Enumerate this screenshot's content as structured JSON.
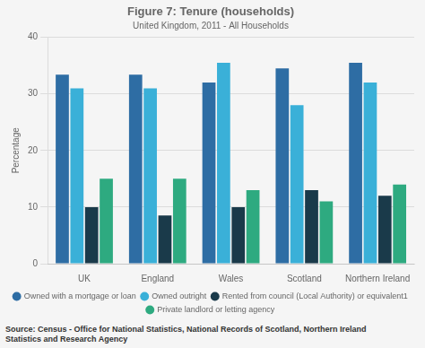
{
  "chart_data": {
    "type": "bar",
    "title": "Figure 7: Tenure (households)",
    "subtitle": "United Kingdom, 2011 - All Households",
    "ylabel": "Percentage",
    "source_text": "Source: Census - Office for National Statistics, National Records of Scotland, Northern Ireland\nStatistics and Research Agency",
    "categories": [
      "UK",
      "England",
      "Wales",
      "Scotland",
      "Northern Ireland"
    ],
    "series": [
      {
        "name": "Owned with a mortgage or loan",
        "color": "#2e6da4",
        "values": [
          33.4,
          33.4,
          32.0,
          34.5,
          35.5
        ]
      },
      {
        "name": "Owned outright",
        "color": "#3ab0d8",
        "values": [
          31.0,
          31.0,
          35.5,
          28.0,
          32.0
        ]
      },
      {
        "name": "Rented from council (Local Authority) or equivalent1",
        "color": "#1a3a4a",
        "values": [
          10.0,
          8.5,
          10.0,
          13.0,
          12.0
        ]
      },
      {
        "name": "Private landlord or letting agency",
        "color": "#2eaa80",
        "values": [
          15.0,
          15.0,
          13.0,
          11.0,
          14.0
        ]
      }
    ],
    "ylim": [
      0,
      40
    ],
    "yticks": [
      0,
      10,
      20,
      30,
      40
    ],
    "grid": true,
    "legend": "bottom"
  }
}
